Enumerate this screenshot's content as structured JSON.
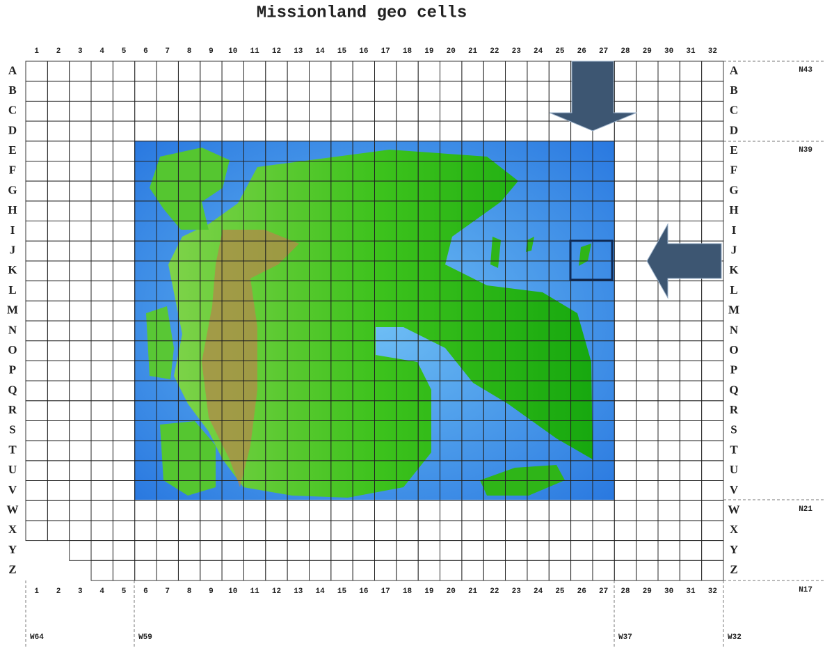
{
  "title": "Missionland geo cells",
  "columns": [
    "1",
    "2",
    "3",
    "4",
    "5",
    "6",
    "7",
    "8",
    "9",
    "10",
    "11",
    "12",
    "13",
    "14",
    "15",
    "16",
    "17",
    "18",
    "19",
    "20",
    "21",
    "22",
    "23",
    "24",
    "25",
    "26",
    "27",
    "28",
    "29",
    "30",
    "31",
    "32"
  ],
  "rows": [
    "A",
    "B",
    "C",
    "D",
    "E",
    "F",
    "G",
    "H",
    "I",
    "J",
    "K",
    "L",
    "M",
    "N",
    "O",
    "P",
    "Q",
    "R",
    "S",
    "T",
    "U",
    "V",
    "W",
    "X",
    "Y",
    "Z"
  ],
  "latitudes": [
    "N43",
    "N39",
    "N21",
    "N17"
  ],
  "longitudes": [
    "W64",
    "W59",
    "W37",
    "W32"
  ]
}
